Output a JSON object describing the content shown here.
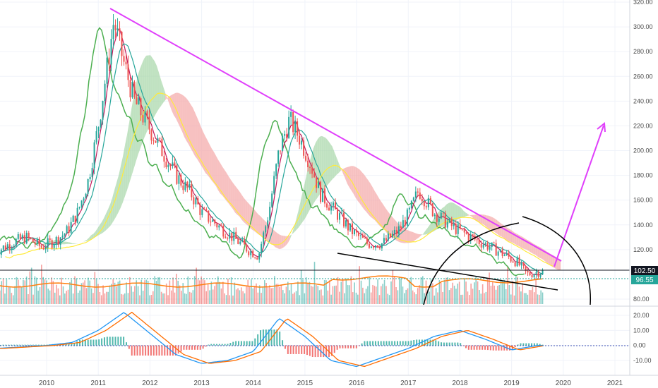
{
  "colors": {
    "grid": "#f0f3fa",
    "axis_text": "#4a4a4a",
    "price_up": "#26a69a",
    "price_down": "#ef5350",
    "cloud_bull": "#a5d6a7",
    "cloud_bear": "#f4a6a6",
    "tenkan": "#c2185b",
    "kijun": "#26a69a",
    "chikou": "#4caf50",
    "span_b_yellow": "#ffeb3b",
    "volume_ma": "#ff7f0e",
    "trend_magenta": "#e040fb",
    "support_black": "#000000",
    "macd_line": "#2196f3",
    "signal_line": "#ff6d00",
    "hist_up": "#26a69a",
    "hist_down": "#ef5350"
  },
  "price_axis": {
    "ticks": [
      "320.00",
      "300.00",
      "280.00",
      "260.00",
      "240.00",
      "220.00",
      "200.00",
      "180.00",
      "160.00",
      "140.00",
      "120.00",
      "80.00"
    ],
    "last_price_label": "102.50",
    "secondary_label": "96.55"
  },
  "macd_axis": {
    "ticks": [
      "20.00",
      "10.00",
      "0.00",
      "-10.00"
    ]
  },
  "time_axis": {
    "ticks": [
      "2010",
      "2011",
      "2012",
      "2013",
      "2014",
      "2015",
      "2016",
      "2017",
      "2018",
      "2019",
      "2020",
      "2021"
    ]
  },
  "chart_data": [
    {
      "type": "line",
      "title": "",
      "x": [
        2009.0,
        2009.3,
        2009.6,
        2009.9,
        2010.2,
        2010.4,
        2010.6,
        2010.8,
        2011.0,
        2011.2,
        2011.3,
        2011.5,
        2011.7,
        2011.9,
        2012.1,
        2012.3,
        2012.5,
        2012.8,
        2013.0,
        2013.3,
        2013.6,
        2013.9,
        2014.1,
        2014.3,
        2014.5,
        2014.7,
        2014.9,
        2015.1,
        2015.3,
        2015.6,
        2015.9,
        2016.2,
        2016.5,
        2016.8,
        2017.0,
        2017.2,
        2017.5,
        2017.8,
        2018.0,
        2018.3,
        2018.6,
        2018.9,
        2019.1,
        2019.3,
        2019.5
      ],
      "series": [
        {
          "values": [
            118,
            125,
            130,
            122,
            128,
            135,
            150,
            175,
            220,
            275,
            305,
            270,
            240,
            225,
            210,
            195,
            180,
            165,
            150,
            140,
            130,
            120,
            115,
            150,
            200,
            225,
            210,
            190,
            165,
            150,
            135,
            125,
            125,
            135,
            148,
            168,
            150,
            140,
            135,
            128,
            122,
            115,
            110,
            100,
            102
          ]
        }
      ],
      "xlim": [
        2009.0,
        2021.1
      ],
      "ylim": [
        77,
        322
      ],
      "xlabel": "",
      "ylabel": "",
      "grid": true
    },
    {
      "type": "bar",
      "title": "",
      "x": [
        2009.0,
        2009.5,
        2010.0,
        2010.5,
        2011.0,
        2011.5,
        2012.0,
        2012.5,
        2013.0,
        2013.5,
        2014.0,
        2014.5,
        2015.0,
        2015.5,
        2016.0,
        2016.5,
        2017.0,
        2017.5,
        2018.0,
        2018.5,
        2019.0,
        2019.5
      ],
      "series": [
        {
          "values": [
            -2,
            -1,
            0,
            2,
            10,
            22,
            8,
            -6,
            -12,
            -10,
            -4,
            18,
            6,
            -10,
            -14,
            -8,
            -2,
            6,
            10,
            4,
            -3,
            0
          ]
        }
      ],
      "ylim": [
        -14,
        24
      ],
      "xlabel": "",
      "ylabel": ""
    }
  ]
}
